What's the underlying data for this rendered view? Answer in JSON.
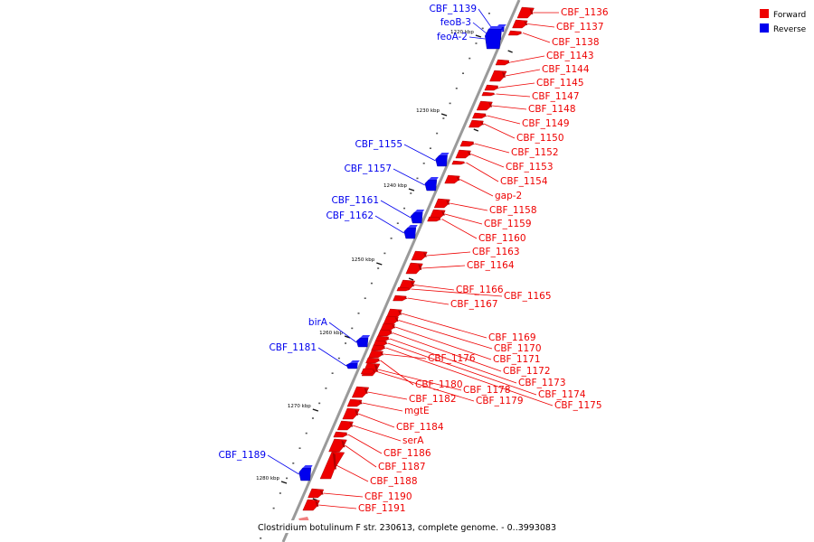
{
  "colors": {
    "forward": "#ee0000",
    "reverse": "#0000ee",
    "axis": "#9a9a9a"
  },
  "legend": [
    {
      "label": "Forward",
      "strand": "forward"
    },
    {
      "label": "Reverse",
      "strand": "reverse"
    }
  ],
  "caption": "Clostridium botulinum F str. 230613, complete genome. - 0..3993083",
  "axis": {
    "unit": "kbp",
    "ticks": [
      "1220 kbp",
      "1230 kbp",
      "1240 kbp",
      "1250 kbp",
      "1260 kbp",
      "1270 kbp",
      "1280 kbp"
    ]
  },
  "forward_genes": [
    "CBF_1136",
    "CBF_1137",
    "CBF_1138",
    "CBF_1143",
    "CBF_1144",
    "CBF_1145",
    "CBF_1147",
    "CBF_1148",
    "CBF_1149",
    "CBF_1150",
    "CBF_1152",
    "CBF_1153",
    "CBF_1154",
    "gap-2",
    "CBF_1158",
    "CBF_1159",
    "CBF_1160",
    "CBF_1163",
    "CBF_1164",
    "CBF_1166",
    "CBF_1165",
    "CBF_1167",
    "CBF_1169",
    "CBF_1170",
    "CBF_1171",
    "CBF_1172",
    "CBF_1173",
    "CBF_1174",
    "CBF_1175",
    "CBF_1176",
    "CBF_1180",
    "CBF_1178",
    "CBF_1179",
    "CBF_1182",
    "mgtE",
    "CBF_1184",
    "serA",
    "CBF_1186",
    "CBF_1187",
    "CBF_1188",
    "CBF_1190",
    "CBF_1191"
  ],
  "reverse_genes": [
    "CBF_1139",
    "feoB-3",
    "feoA-2",
    "CBF_1155",
    "CBF_1157",
    "CBF_1161",
    "CBF_1162",
    "birA",
    "CBF_1181",
    "CBF_1189"
  ]
}
